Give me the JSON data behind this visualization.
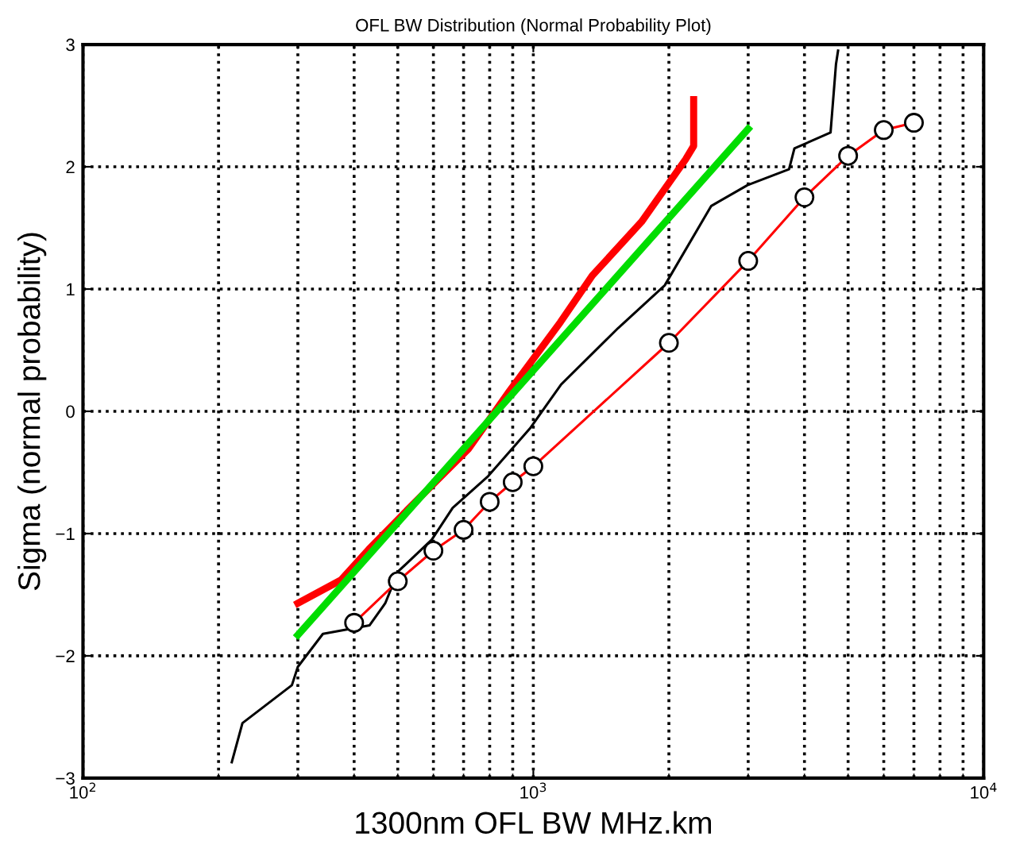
{
  "chart_data": {
    "type": "line",
    "title": "OFL BW Distribution (Normal Probability Plot)",
    "xlabel": "1300nm OFL BW MHz.km",
    "ylabel": "Sigma (normal probability)",
    "log": "x",
    "xlim": [
      100,
      10000
    ],
    "xticks": [
      {
        "value": 100,
        "label": "10$^{2}$"
      },
      {
        "value": 1000,
        "label": "10$^{3}$"
      },
      {
        "value": 10000,
        "label": "10$^{4}$"
      }
    ],
    "ylim": [
      -3,
      3
    ],
    "yticks": [
      -3,
      -2,
      -1,
      0,
      1,
      2,
      3
    ],
    "grid": true,
    "series": [
      {
        "color": "#ff0000",
        "marker": "none",
        "x": [
          300,
          374,
          431,
          521,
          717,
          883,
          1149,
          1352,
          1739,
          2178,
          2270,
          2270
        ],
        "values": [
          -1.57,
          -1.38,
          -1.13,
          -0.82,
          -0.31,
          0.16,
          0.73,
          1.11,
          1.55,
          2.06,
          2.17,
          2.55
        ]
      },
      {
        "color": "#00dd00",
        "marker": "none",
        "x": [
          300,
          3000
        ],
        "values": [
          -1.83,
          2.31
        ]
      },
      {
        "color": "#000000",
        "marker": "none",
        "x": [
          214,
          226,
          291,
          300,
          341,
          433,
          469,
          501,
          595,
          662,
          794,
          983,
          1153,
          1542,
          1958,
          2484,
          2990,
          3697,
          3800,
          4571,
          4700,
          4750
        ],
        "values": [
          -2.87,
          -2.55,
          -2.24,
          -2.09,
          -1.82,
          -1.75,
          -1.57,
          -1.31,
          -1.05,
          -0.79,
          -0.53,
          -0.14,
          0.22,
          0.68,
          1.03,
          1.68,
          1.85,
          1.98,
          2.15,
          2.28,
          2.84,
          2.95
        ]
      },
      {
        "color": "#ff0000",
        "marker": "circle",
        "x": [
          400,
          500,
          600,
          700,
          800,
          900,
          1000,
          2000,
          3000,
          4000,
          5000,
          6000,
          7000
        ],
        "values": [
          -1.73,
          -1.39,
          -1.14,
          -0.97,
          -0.74,
          -0.58,
          -0.45,
          0.56,
          1.23,
          1.75,
          2.09,
          2.3,
          2.36
        ]
      }
    ]
  }
}
